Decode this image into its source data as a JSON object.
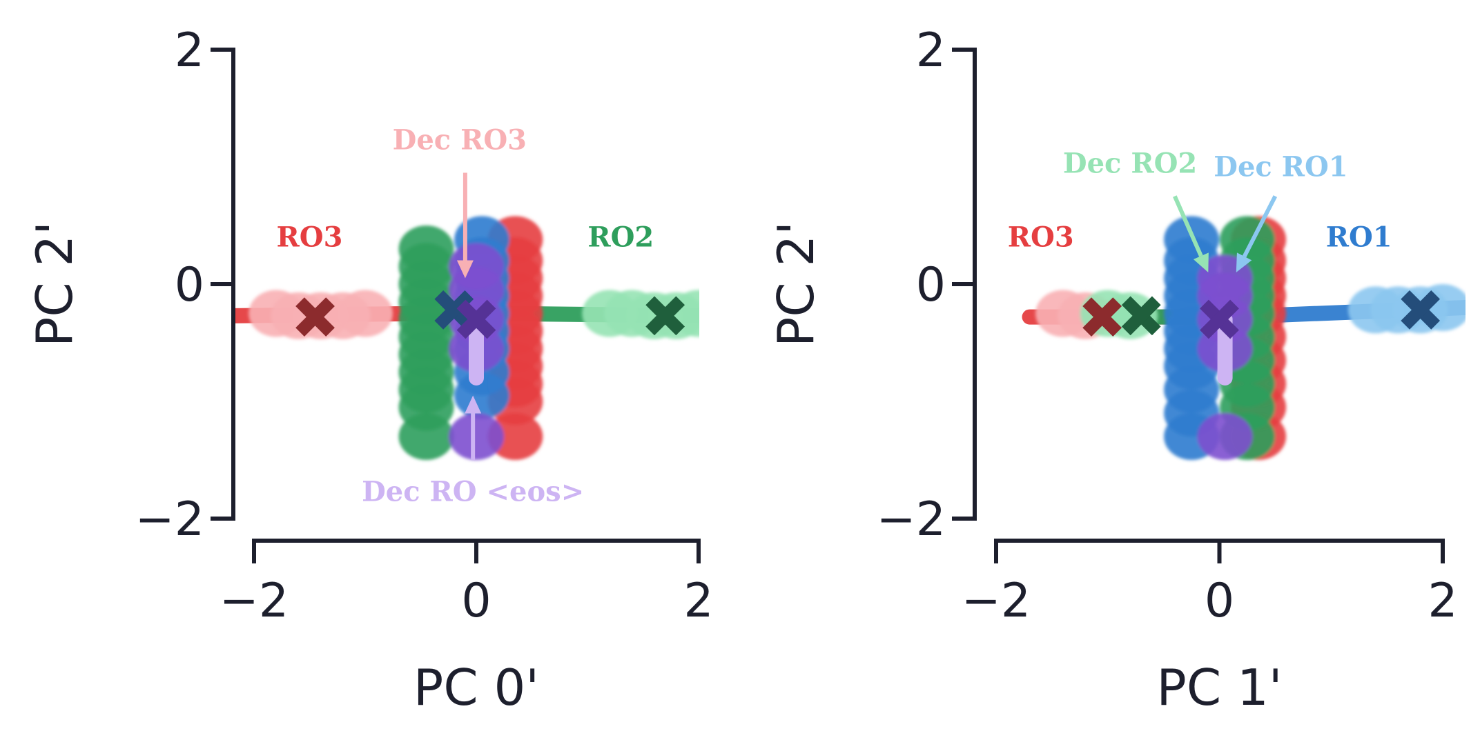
{
  "colors": {
    "axis": "#1d1f2d",
    "RO1": "#2f7ccf",
    "RO1_light": "#8cc7f0",
    "RO2": "#2e9e5c",
    "RO2_light": "#96e3b4",
    "RO3": "#e53e40",
    "RO3_light": "#f8b0b4",
    "eos": "#7d4fcf",
    "eos_light": "#cdb4f3",
    "mean_RO1": "#244d7a",
    "mean_RO2": "#1f5f3c",
    "mean_RO3": "#8c2b2d",
    "mean_eos": "#553296"
  },
  "chart_data": [
    {
      "type": "scatter",
      "xlabel": "PC 0'",
      "ylabel": "PC 2'",
      "xlim": [
        -2.2,
        2.2
      ],
      "ylim": [
        -2,
        2
      ],
      "xticks": [
        -2,
        0,
        2
      ],
      "yticks": [
        -2,
        0,
        2
      ],
      "xtick_labels": [
        "−2",
        "0",
        "2"
      ],
      "ytick_labels": [
        "−2",
        "0",
        "2"
      ],
      "grid": false,
      "lines": [
        {
          "color": "RO3",
          "x": [
            -2.2,
            -0.4
          ],
          "y": [
            -0.27,
            -0.25
          ]
        },
        {
          "color": "RO2",
          "x": [
            0.1,
            2.2
          ],
          "y": [
            -0.25,
            -0.27
          ]
        }
      ],
      "clouds": [
        {
          "color": "RO3_light",
          "x": [
            -1.8,
            -1.6,
            -1.4,
            -1.2,
            -1.0
          ],
          "y": [
            -0.25,
            -0.27,
            -0.27,
            -0.27,
            -0.25
          ]
        },
        {
          "color": "RO2_light",
          "x": [
            1.2,
            1.4,
            1.6,
            1.8,
            2.0
          ],
          "y": [
            -0.25,
            -0.25,
            -0.27,
            -0.27,
            -0.25
          ]
        },
        {
          "color": "RO2",
          "x": [
            -0.45,
            -0.45,
            -0.45,
            -0.45,
            -0.45,
            -0.45,
            -0.45,
            -0.45,
            -0.45,
            -0.45,
            -0.45
          ],
          "y": [
            0.3,
            0.15,
            0.0,
            -0.15,
            -0.3,
            -0.45,
            -0.6,
            -0.75,
            -0.9,
            -1.05,
            -1.3
          ]
        },
        {
          "color": "RO3",
          "x": [
            0.35,
            0.35,
            0.35,
            0.35,
            0.35,
            0.35,
            0.35,
            0.35,
            0.35,
            0.35,
            0.35
          ],
          "y": [
            0.38,
            0.2,
            0.05,
            -0.1,
            -0.25,
            -0.4,
            -0.55,
            -0.7,
            -0.85,
            -1.0,
            -1.3
          ]
        },
        {
          "color": "RO1",
          "x": [
            0.05,
            0.05,
            0.05,
            0.05,
            0.05,
            0.05,
            0.05,
            0.05,
            0.05
          ],
          "y": [
            0.38,
            0.2,
            0.05,
            -0.1,
            -0.25,
            -0.4,
            -0.55,
            -0.75,
            -0.95
          ]
        },
        {
          "color": "eos",
          "x": [
            0.0,
            0.0,
            0.0,
            0.0,
            0.0
          ],
          "y": [
            0.15,
            -0.05,
            -0.3,
            -0.55,
            -1.3
          ]
        }
      ],
      "eos_bar": {
        "x": 0.0,
        "y": [
          -0.3,
          -0.8
        ]
      },
      "means": [
        {
          "color": "mean_RO3",
          "x": -1.45,
          "y": -0.28
        },
        {
          "color": "mean_RO2",
          "x": 1.7,
          "y": -0.27
        },
        {
          "color": "mean_RO1",
          "x": -0.2,
          "y": -0.22
        },
        {
          "color": "mean_eos",
          "x": 0.0,
          "y": -0.3
        }
      ],
      "annotations": [
        {
          "text": "RO3",
          "color": "RO3",
          "x": -1.5,
          "y": 0.32
        },
        {
          "text": "RO2",
          "color": "RO2",
          "x": 1.3,
          "y": 0.32
        },
        {
          "text": "Dec RO3",
          "color": "RO3_light",
          "x": -0.15,
          "y": 1.15,
          "arrow_from": [
            -0.1,
            0.95
          ],
          "arrow_to": [
            -0.1,
            0.05
          ]
        },
        {
          "text": "Dec RO <eos>",
          "color": "eos_light",
          "x": -0.03,
          "y": -1.85,
          "arrow_from": [
            -0.03,
            -1.5
          ],
          "arrow_to": [
            -0.03,
            -0.95
          ]
        }
      ]
    },
    {
      "type": "scatter",
      "xlabel": "PC 1'",
      "ylabel": "PC 2'",
      "xlim": [
        -2.2,
        2.2
      ],
      "ylim": [
        -2,
        2
      ],
      "xticks": [
        -2,
        0,
        2
      ],
      "yticks": [
        -2,
        0,
        2
      ],
      "xtick_labels": [
        "−2",
        "0",
        "2"
      ],
      "ytick_labels": [
        "−2",
        "0",
        "2"
      ],
      "grid": false,
      "lines": [
        {
          "color": "RO3",
          "x": [
            -1.7,
            -0.4
          ],
          "y": [
            -0.28,
            -0.28
          ]
        },
        {
          "color": "RO2",
          "x": [
            -0.9,
            0.2
          ],
          "y": [
            -0.28,
            -0.28
          ]
        },
        {
          "color": "RO1",
          "x": [
            0.1,
            2.2
          ],
          "y": [
            -0.28,
            -0.2
          ]
        }
      ],
      "clouds": [
        {
          "color": "RO3_light",
          "x": [
            -1.4,
            -1.2
          ],
          "y": [
            -0.25,
            -0.27
          ]
        },
        {
          "color": "RO2_light",
          "x": [
            -1.0,
            -0.8
          ],
          "y": [
            -0.25,
            -0.27
          ]
        },
        {
          "color": "RO1_light",
          "x": [
            1.4,
            1.6,
            1.8,
            2.0
          ],
          "y": [
            -0.22,
            -0.22,
            -0.22,
            -0.2
          ]
        },
        {
          "color": "RO3",
          "x": [
            0.35,
            0.35,
            0.35,
            0.35,
            0.35,
            0.35,
            0.35,
            0.35,
            0.35,
            0.35
          ],
          "y": [
            0.38,
            0.2,
            0.05,
            -0.1,
            -0.25,
            -0.45,
            -0.65,
            -0.85,
            -1.05,
            -1.3
          ]
        },
        {
          "color": "RO2",
          "x": [
            0.25,
            0.25,
            0.25,
            0.25,
            0.25,
            0.25,
            0.25,
            0.25,
            0.25,
            0.25
          ],
          "y": [
            0.38,
            0.2,
            0.05,
            -0.1,
            -0.25,
            -0.45,
            -0.65,
            -0.85,
            -1.05,
            -1.3
          ]
        },
        {
          "color": "RO1",
          "x": [
            -0.25,
            -0.25,
            -0.25,
            -0.25,
            -0.25,
            -0.25,
            -0.25,
            -0.25,
            -0.25,
            -0.25,
            -0.25
          ],
          "y": [
            0.38,
            0.2,
            0.05,
            -0.1,
            -0.25,
            -0.4,
            -0.55,
            -0.7,
            -0.9,
            -1.1,
            -1.3
          ]
        },
        {
          "color": "eos",
          "x": [
            0.05,
            0.05,
            0.05,
            0.05,
            0.05
          ],
          "y": [
            0.05,
            -0.1,
            -0.3,
            -0.55,
            -1.3
          ]
        }
      ],
      "eos_bar": {
        "x": 0.05,
        "y": [
          -0.3,
          -0.8
        ]
      },
      "means": [
        {
          "color": "mean_RO3",
          "x": -1.05,
          "y": -0.28
        },
        {
          "color": "mean_RO2",
          "x": -0.7,
          "y": -0.27
        },
        {
          "color": "mean_RO1",
          "x": 1.8,
          "y": -0.22
        },
        {
          "color": "mean_eos",
          "x": 0.0,
          "y": -0.3
        }
      ],
      "annotations": [
        {
          "text": "RO3",
          "color": "RO3",
          "x": -1.6,
          "y": 0.32
        },
        {
          "text": "RO1",
          "color": "RO1",
          "x": 1.25,
          "y": 0.32
        },
        {
          "text": "Dec RO2",
          "color": "RO2_light",
          "x": -0.8,
          "y": 0.95,
          "arrow_from": [
            -0.4,
            0.75
          ],
          "arrow_to": [
            -0.1,
            0.1
          ]
        },
        {
          "text": "Dec RO1",
          "color": "RO1_light",
          "x": 0.55,
          "y": 0.92,
          "arrow_from": [
            0.5,
            0.75
          ],
          "arrow_to": [
            0.15,
            0.1
          ]
        }
      ]
    }
  ]
}
